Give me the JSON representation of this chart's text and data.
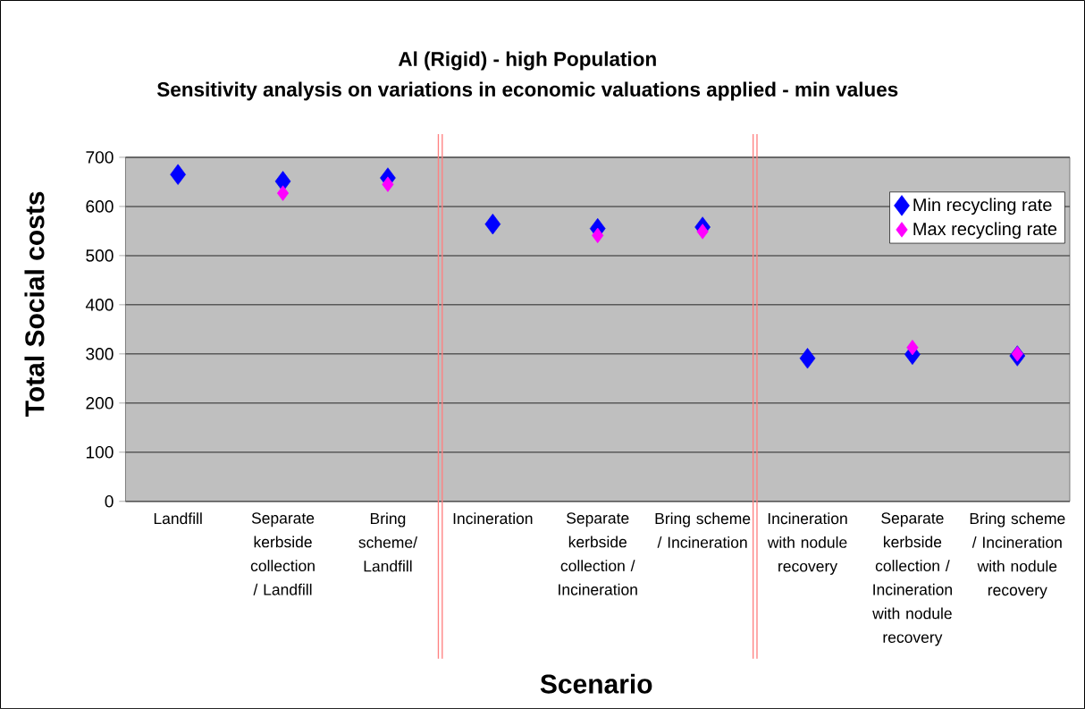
{
  "chart_data": {
    "type": "scatter",
    "title": "Al (Rigid) - high Population",
    "subtitle": "Sensitivity analysis on variations in economic valuations applied - min values",
    "xlabel": "Scenario",
    "ylabel": "Total Social costs",
    "categories": [
      "Landfill",
      "Separate kerbside collection / Landfill",
      "Bring scheme/ Landfill",
      "Incineration",
      "Separate kerbside collection / Incineration",
      "Bring scheme / Incineration",
      "Incineration with nodule recovery",
      "Separate kerbside collection / Incineration with nodule recovery",
      "Bring scheme / Incineration with nodule recovery"
    ],
    "series": [
      {
        "name": "Min recycling rate",
        "color": "#0000ff",
        "values": [
          665,
          651,
          658,
          564,
          555,
          558,
          291,
          299,
          296
        ]
      },
      {
        "name": "Max recycling rate",
        "color": "#ff00ff",
        "values": [
          null,
          627,
          645,
          null,
          541,
          549,
          null,
          313,
          300
        ]
      }
    ],
    "ylim": [
      0,
      700
    ],
    "yticks": [
      0,
      100,
      200,
      300,
      400,
      500,
      600,
      700
    ],
    "grid": "y",
    "legend": "top right",
    "marker": "diamond"
  }
}
